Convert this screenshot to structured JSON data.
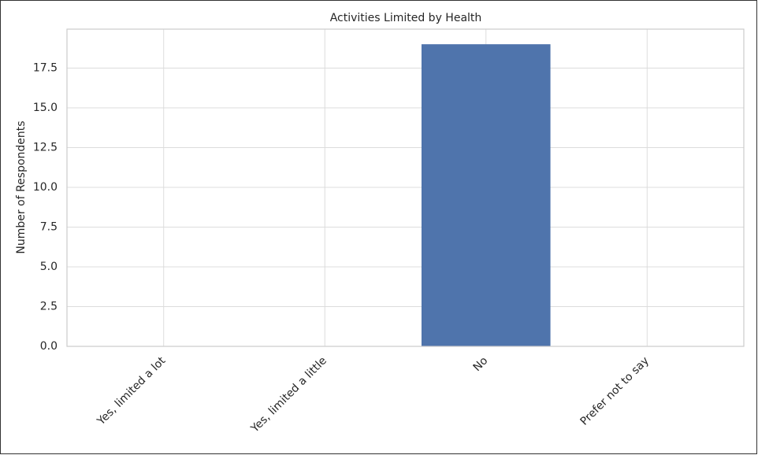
{
  "chart_data": {
    "type": "bar",
    "title": "Activities Limited by Health",
    "y_label": "Number of Respondents",
    "categories": [
      "Yes, limited a lot",
      "Yes, limited a little",
      "No",
      "Prefer not to say"
    ],
    "values": [
      0,
      0,
      19,
      0
    ],
    "color": "#4f74ac",
    "ylim": [
      0,
      19.95
    ],
    "yticks": [
      {
        "value": 0,
        "label": "0.0"
      },
      {
        "value": 2.5,
        "label": "2.5"
      },
      {
        "value": 5,
        "label": "5.0"
      },
      {
        "value": 7.5,
        "label": "7.5"
      },
      {
        "value": 10,
        "label": "10.0"
      },
      {
        "value": 12.5,
        "label": "12.5"
      },
      {
        "value": 15,
        "label": "15.0"
      },
      {
        "value": 17.5,
        "label": "17.5"
      }
    ],
    "grid": true
  }
}
